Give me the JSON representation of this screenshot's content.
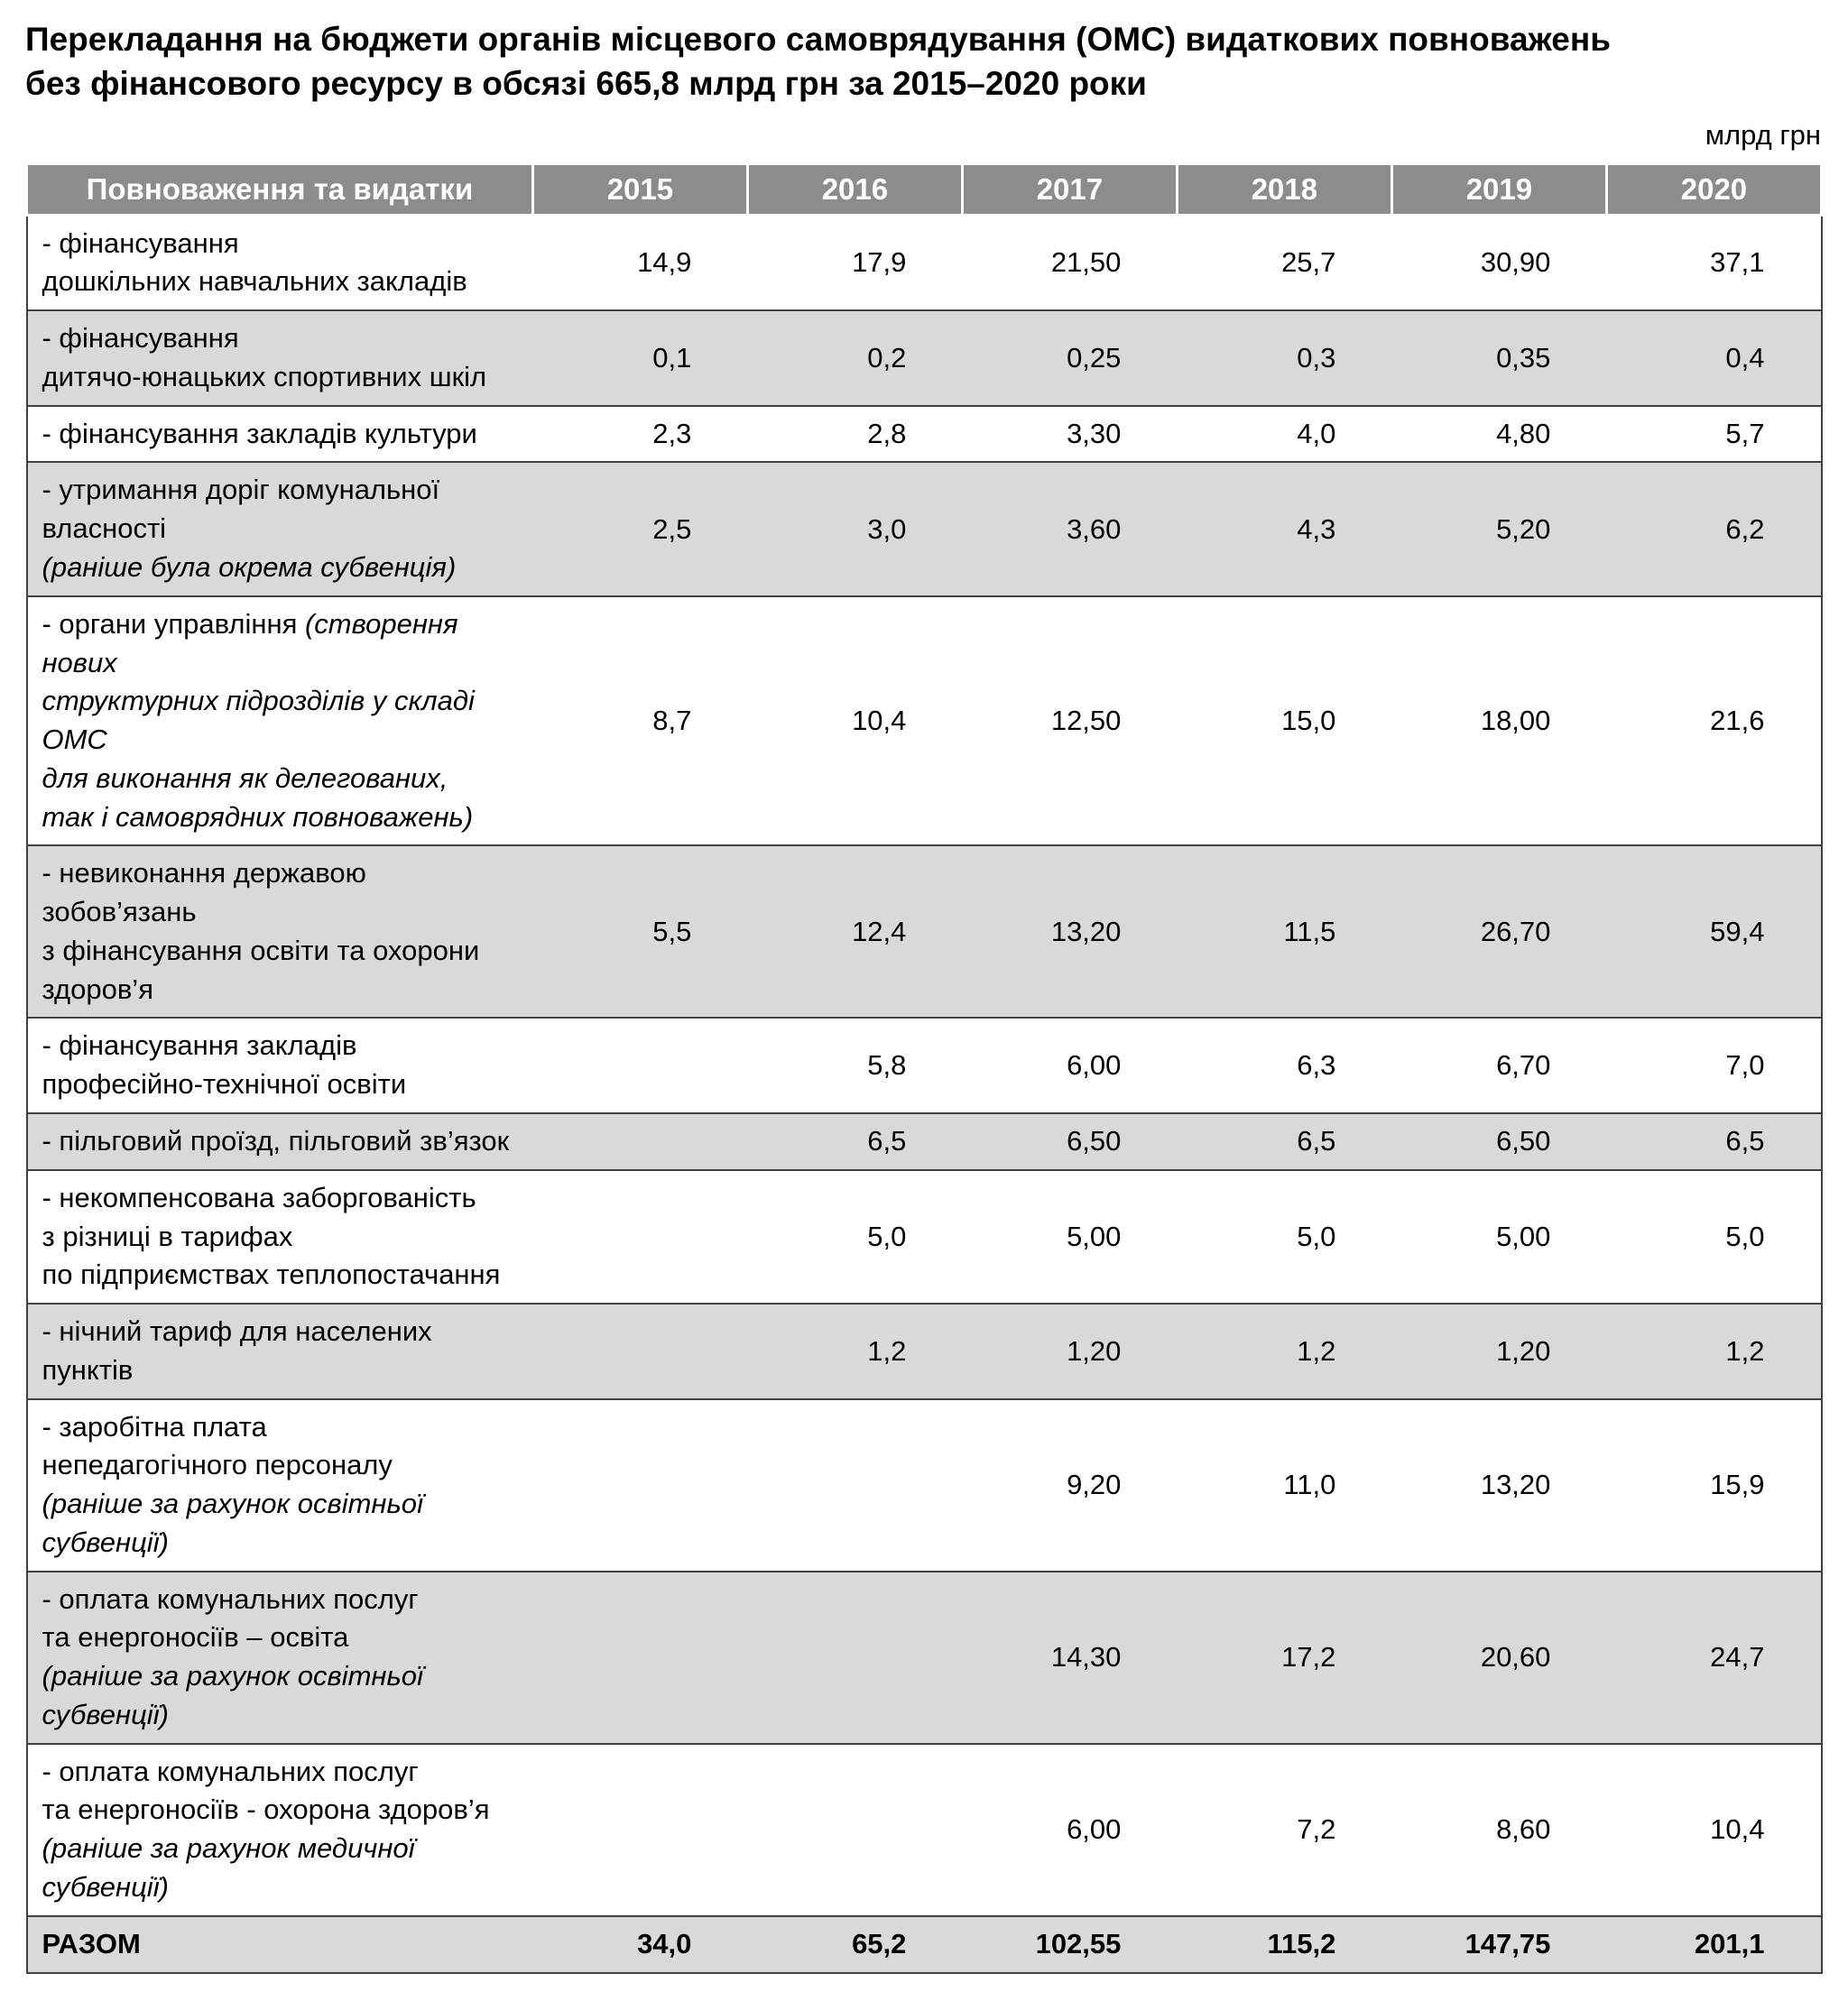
{
  "title": {
    "line1": "Перекладання на бюджети органів місцевого самоврядування (ОМС) видаткових повноважень",
    "line2": "без фінансового ресурсу в обсязі 665,8 млрд грн за 2015–2020 роки"
  },
  "unit_label": "млрд грн",
  "colors": {
    "header_bg": "#8c8c8c",
    "header_text": "#ffffff",
    "stripe": "#d9d9d9",
    "border": "#404040"
  },
  "table": {
    "header": {
      "label_col": "Повноваження та видатки",
      "years": [
        "2015",
        "2016",
        "2017",
        "2018",
        "2019",
        "2020"
      ]
    },
    "rows": [
      {
        "label_lines": [
          {
            "normal": "- фінансування",
            "italic": ""
          },
          {
            "normal": "дошкільних навчальних закладів",
            "italic": ""
          }
        ],
        "values": [
          "14,9",
          "17,9",
          "21,50",
          "25,7",
          "30,90",
          "37,1"
        ]
      },
      {
        "label_lines": [
          {
            "normal": "- фінансування",
            "italic": ""
          },
          {
            "normal": "дитячо-юнацьких спортивних шкіл",
            "italic": ""
          }
        ],
        "values": [
          "0,1",
          "0,2",
          "0,25",
          "0,3",
          "0,35",
          "0,4"
        ]
      },
      {
        "label_lines": [
          {
            "normal": "- фінансування закладів культури",
            "italic": ""
          }
        ],
        "values": [
          "2,3",
          "2,8",
          "3,30",
          "4,0",
          "4,80",
          "5,7"
        ]
      },
      {
        "label_lines": [
          {
            "normal": "- утримання доріг комунальної власності",
            "italic": ""
          },
          {
            "normal": "",
            "italic": "(раніше була окрема субвенція)"
          }
        ],
        "values": [
          "2,5",
          "3,0",
          "3,60",
          "4,3",
          "5,20",
          "6,2"
        ]
      },
      {
        "label_lines": [
          {
            "normal": "- органи управління ",
            "italic": "(створення нових"
          },
          {
            "normal": "",
            "italic": "структурних підрозділів у складі ОМС"
          },
          {
            "normal": "",
            "italic": "для виконання як делегованих,"
          },
          {
            "normal": "",
            "italic": "так і самоврядних повноважень)"
          }
        ],
        "values": [
          "8,7",
          "10,4",
          "12,50",
          "15,0",
          "18,00",
          "21,6"
        ]
      },
      {
        "label_lines": [
          {
            "normal": "- невиконання державою зобов’язань",
            "italic": ""
          },
          {
            "normal": "з фінансування освіти та охорони здоров’я",
            "italic": ""
          }
        ],
        "values": [
          "5,5",
          "12,4",
          "13,20",
          "11,5",
          "26,70",
          "59,4"
        ]
      },
      {
        "label_lines": [
          {
            "normal": "- фінансування закладів",
            "italic": ""
          },
          {
            "normal": "професійно-технічної освіти",
            "italic": ""
          }
        ],
        "values": [
          "",
          "5,8",
          "6,00",
          "6,3",
          "6,70",
          "7,0"
        ]
      },
      {
        "label_lines": [
          {
            "normal": "- пільговий проїзд, пільговий зв’язок",
            "italic": ""
          }
        ],
        "values": [
          "",
          "6,5",
          "6,50",
          "6,5",
          "6,50",
          "6,5"
        ]
      },
      {
        "label_lines": [
          {
            "normal": "- некомпенсована заборгованість",
            "italic": ""
          },
          {
            "normal": "з різниці в тарифах",
            "italic": ""
          },
          {
            "normal": "по підприємствах теплопостачання",
            "italic": ""
          }
        ],
        "values": [
          "",
          "5,0",
          "5,00",
          "5,0",
          "5,00",
          "5,0"
        ]
      },
      {
        "label_lines": [
          {
            "normal": "- нічний тариф для населених пунктів",
            "italic": ""
          }
        ],
        "values": [
          "",
          "1,2",
          "1,20",
          "1,2",
          "1,20",
          "1,2"
        ]
      },
      {
        "label_lines": [
          {
            "normal": "- заробітна плата",
            "italic": ""
          },
          {
            "normal": "непедагогічного персоналу",
            "italic": ""
          },
          {
            "normal": "",
            "italic": "(раніше за рахунок освітньої субвенції)"
          }
        ],
        "values": [
          "",
          "",
          "9,20",
          "11,0",
          "13,20",
          "15,9"
        ]
      },
      {
        "label_lines": [
          {
            "normal": "- оплата комунальних послуг",
            "italic": ""
          },
          {
            "normal": "та енергоносіїв – освіта",
            "italic": ""
          },
          {
            "normal": "",
            "italic": "(раніше за рахунок освітньої субвенції)"
          }
        ],
        "values": [
          "",
          "",
          "14,30",
          "17,2",
          "20,60",
          "24,7"
        ]
      },
      {
        "label_lines": [
          {
            "normal": "- оплата комунальних послуг",
            "italic": ""
          },
          {
            "normal": "та енергоносіїв - охорона здоров’я",
            "italic": ""
          },
          {
            "normal": "",
            "italic": "(раніше за рахунок медичної субвенції)"
          }
        ],
        "values": [
          "",
          "",
          "6,00",
          "7,2",
          "8,60",
          "10,4"
        ]
      }
    ],
    "total": {
      "label": "РАЗОМ",
      "values": [
        "34,0",
        "65,2",
        "102,55",
        "115,2",
        "147,75",
        "201,1"
      ]
    }
  }
}
